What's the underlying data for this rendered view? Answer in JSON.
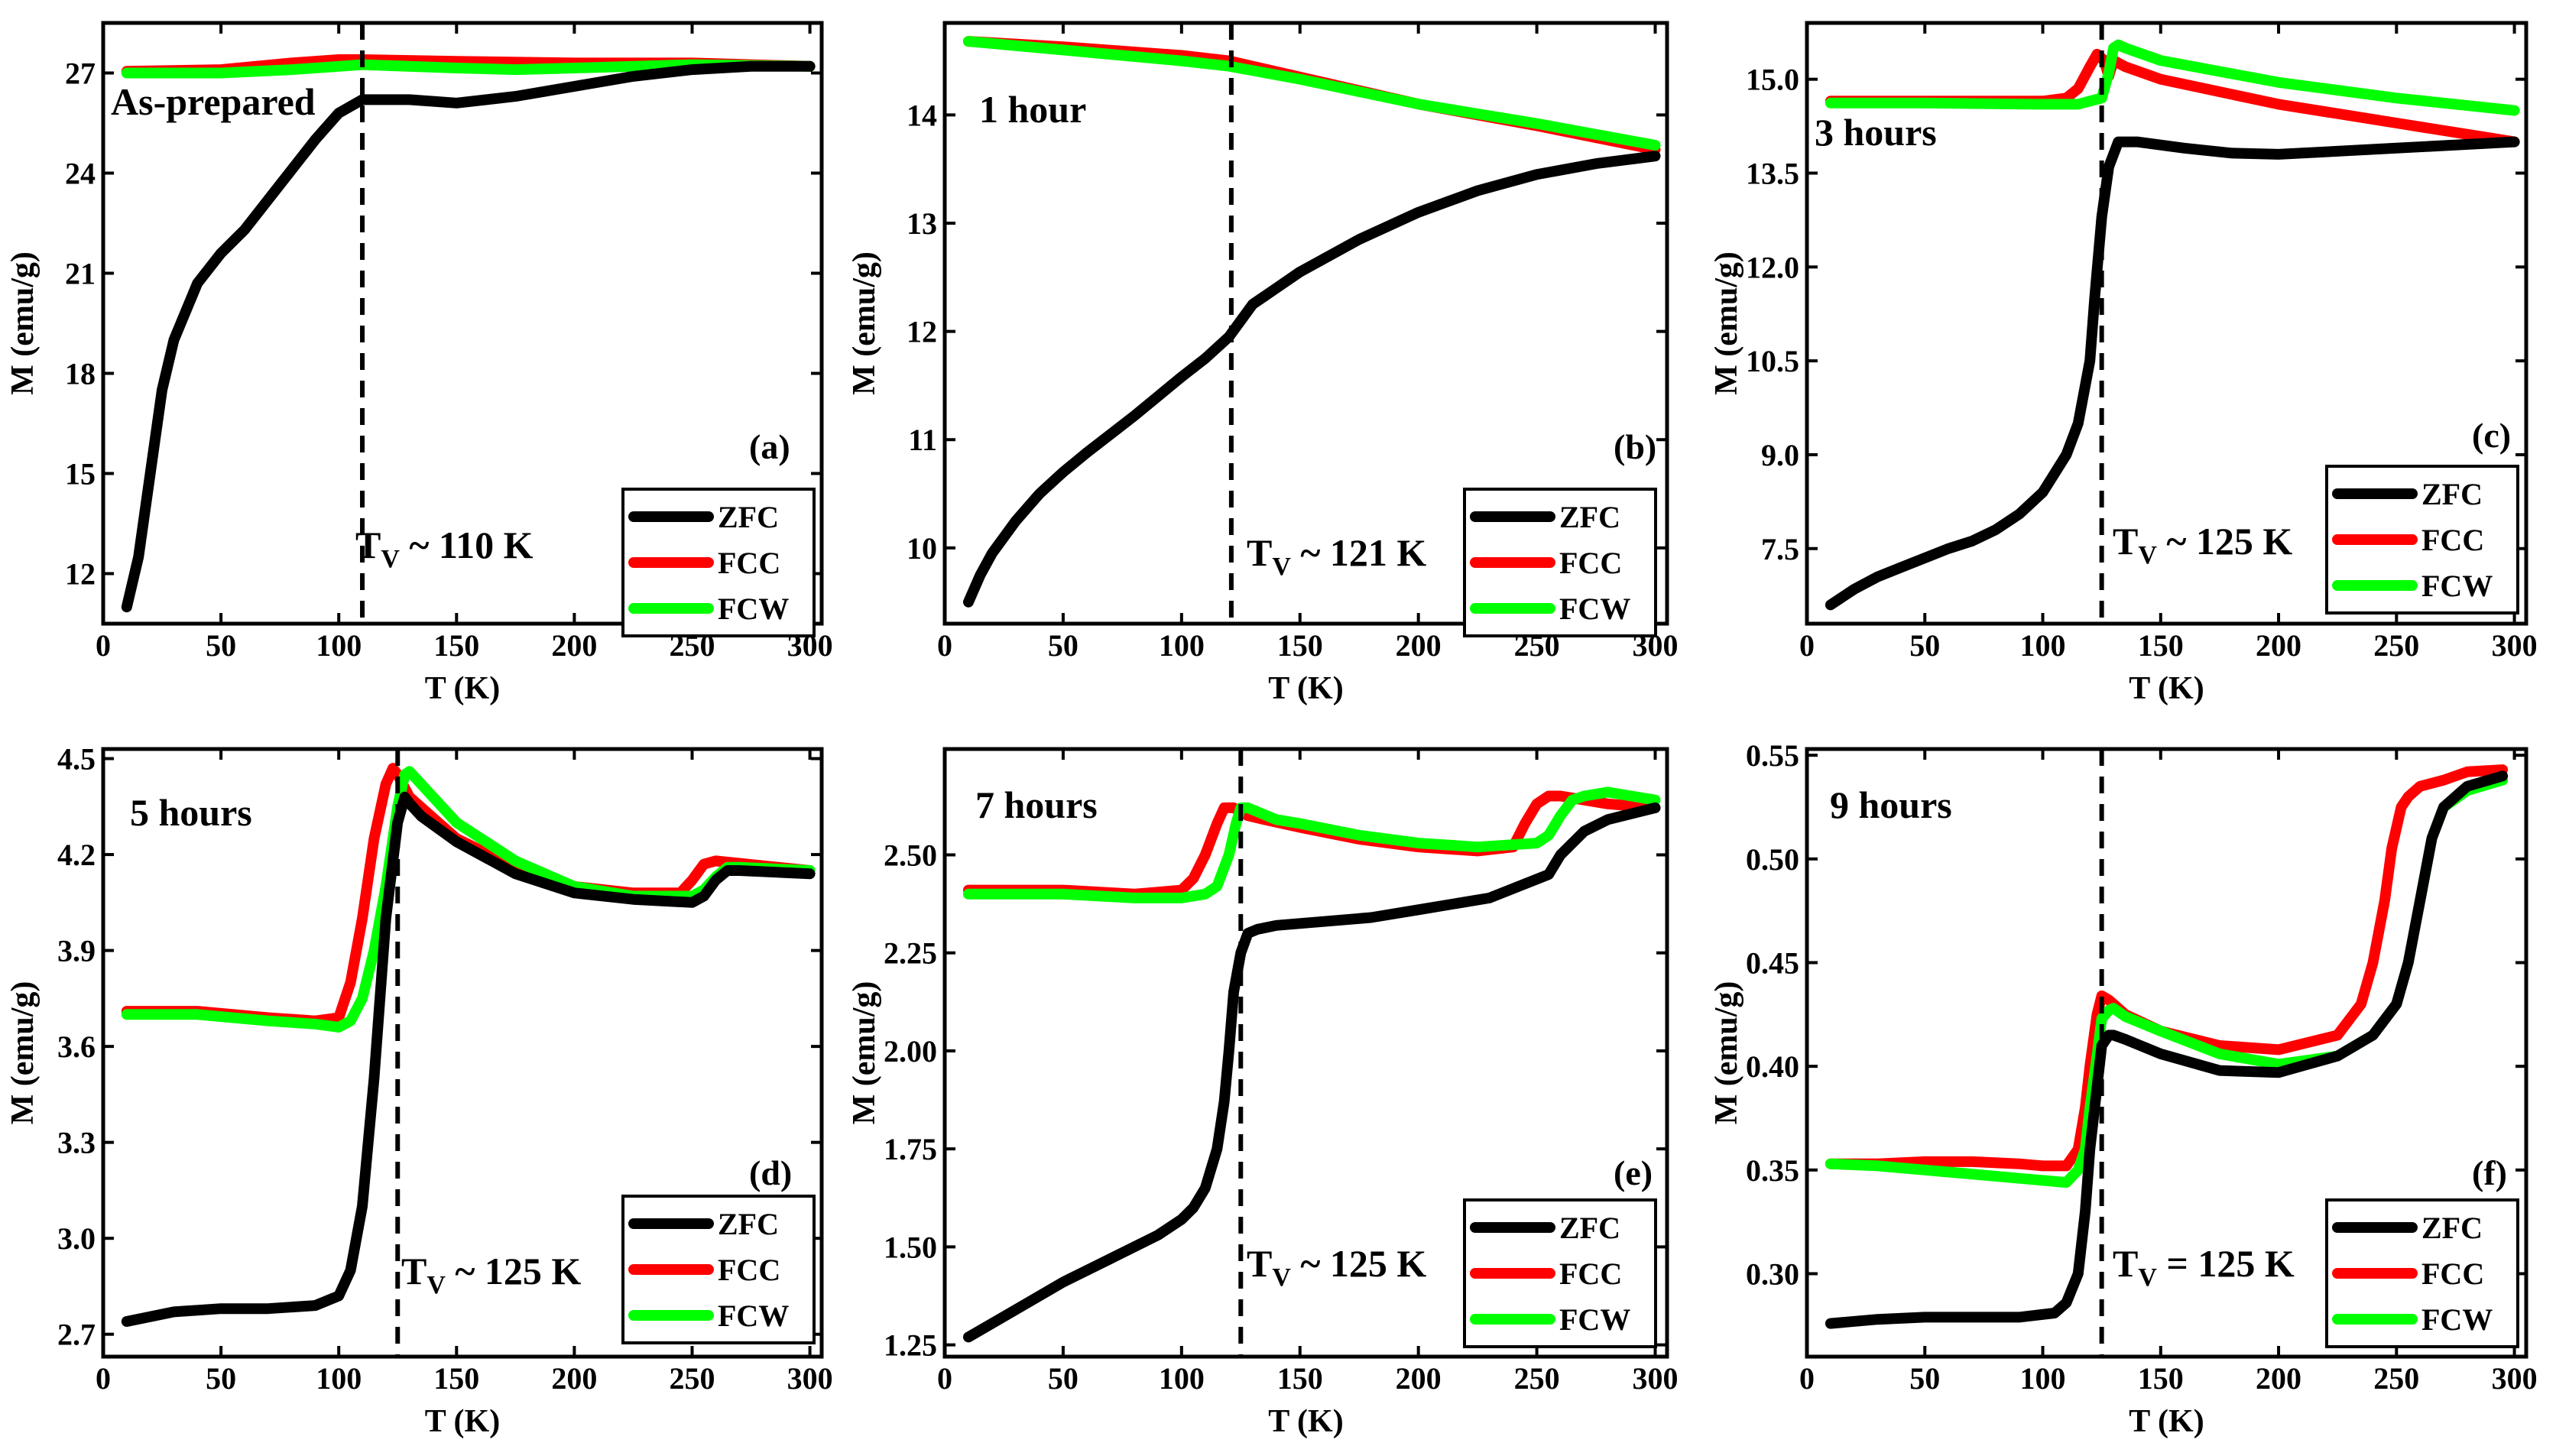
{
  "colors": {
    "ZFC": "#000000",
    "FCC": "#ff0000",
    "FCW": "#00ff00"
  },
  "chart_data": [
    {
      "type": "line",
      "panel_label": "(a)",
      "sample_label": "As-prepared",
      "transition_label": {
        "prefix": "T",
        "sub": "V",
        "suffix": " ~ 110 K"
      },
      "vline_x": 110,
      "xlabel": "T (K)",
      "ylabel": "M (emu/g)",
      "xlim": [
        0,
        305
      ],
      "ylim": [
        10.5,
        28.5
      ],
      "xticks": [
        0,
        50,
        100,
        150,
        200,
        250,
        300
      ],
      "yticks": [
        12,
        15,
        18,
        21,
        24,
        27
      ],
      "ytick_labels": [
        "12",
        "15",
        "18",
        "21",
        "24",
        "27"
      ],
      "legend": [
        "ZFC",
        "FCC",
        "FCW"
      ],
      "series": [
        {
          "name": "ZFC",
          "x": [
            10,
            15,
            20,
            25,
            30,
            40,
            50,
            60,
            70,
            80,
            90,
            100,
            110,
            115,
            130,
            150,
            175,
            200,
            225,
            250,
            275,
            300
          ],
          "y": [
            11.0,
            12.5,
            15.0,
            17.5,
            19.0,
            20.7,
            21.6,
            22.3,
            23.2,
            24.1,
            25.0,
            25.8,
            26.2,
            26.2,
            26.2,
            26.1,
            26.3,
            26.6,
            26.9,
            27.1,
            27.2,
            27.2
          ]
        },
        {
          "name": "FCC",
          "x": [
            10,
            50,
            80,
            100,
            110,
            150,
            200,
            250,
            300
          ],
          "y": [
            27.05,
            27.1,
            27.3,
            27.4,
            27.4,
            27.35,
            27.3,
            27.3,
            27.2
          ]
        },
        {
          "name": "FCW",
          "x": [
            10,
            50,
            80,
            100,
            110,
            150,
            175,
            200,
            250,
            300
          ],
          "y": [
            27.0,
            27.0,
            27.1,
            27.2,
            27.25,
            27.15,
            27.1,
            27.15,
            27.25,
            27.2
          ]
        }
      ]
    },
    {
      "type": "line",
      "panel_label": "(b)",
      "sample_label": "1 hour",
      "transition_label": {
        "prefix": "T",
        "sub": "V",
        "suffix": " ~ 121 K"
      },
      "vline_x": 121,
      "xlabel": "T (K)",
      "ylabel": "M (emu/g)",
      "xlim": [
        0,
        305
      ],
      "ylim": [
        9.3,
        14.85
      ],
      "xticks": [
        0,
        50,
        100,
        150,
        200,
        250,
        300
      ],
      "yticks": [
        10,
        11,
        12,
        13,
        14
      ],
      "ytick_labels": [
        "10",
        "11",
        "12",
        "13",
        "14"
      ],
      "legend": [
        "ZFC",
        "FCC",
        "FCW"
      ],
      "series": [
        {
          "name": "ZFC",
          "x": [
            10,
            15,
            20,
            30,
            40,
            50,
            60,
            70,
            80,
            90,
            100,
            110,
            120,
            130,
            140,
            150,
            175,
            200,
            225,
            250,
            275,
            300
          ],
          "y": [
            9.5,
            9.75,
            9.95,
            10.25,
            10.5,
            10.7,
            10.88,
            11.05,
            11.22,
            11.4,
            11.58,
            11.75,
            11.95,
            12.25,
            12.4,
            12.55,
            12.85,
            13.1,
            13.3,
            13.45,
            13.55,
            13.62
          ]
        },
        {
          "name": "FCC",
          "x": [
            10,
            50,
            100,
            120,
            150,
            200,
            250,
            300
          ],
          "y": [
            14.68,
            14.63,
            14.55,
            14.5,
            14.35,
            14.1,
            13.9,
            13.68
          ]
        },
        {
          "name": "FCW",
          "x": [
            10,
            50,
            100,
            120,
            150,
            200,
            250,
            300
          ],
          "y": [
            14.68,
            14.6,
            14.5,
            14.45,
            14.33,
            14.1,
            13.92,
            13.72
          ]
        }
      ]
    },
    {
      "type": "line",
      "panel_label": "(c)",
      "sample_label": "3 hours",
      "transition_label": {
        "prefix": "T",
        "sub": "V",
        "suffix": " ~ 125 K"
      },
      "vline_x": 125,
      "xlabel": "T (K)",
      "ylabel": "M (emu/g)",
      "xlim": [
        0,
        305
      ],
      "ylim": [
        6.3,
        15.9
      ],
      "xticks": [
        0,
        50,
        100,
        150,
        200,
        250,
        300
      ],
      "yticks": [
        7.5,
        9.0,
        10.5,
        12.0,
        13.5,
        15.0
      ],
      "ytick_labels": [
        "7.5",
        "9.0",
        "10.5",
        "12.0",
        "13.5",
        "15.0"
      ],
      "legend": [
        "ZFC",
        "FCC",
        "FCW"
      ],
      "series": [
        {
          "name": "ZFC",
          "x": [
            10,
            20,
            30,
            40,
            50,
            60,
            70,
            80,
            90,
            100,
            105,
            110,
            115,
            120,
            122,
            125,
            128,
            132,
            140,
            160,
            180,
            200,
            250,
            300
          ],
          "y": [
            6.6,
            6.85,
            7.05,
            7.2,
            7.35,
            7.5,
            7.62,
            7.8,
            8.05,
            8.4,
            8.7,
            9.0,
            9.5,
            10.5,
            11.5,
            12.8,
            13.6,
            14.0,
            14.0,
            13.9,
            13.82,
            13.8,
            13.9,
            14.0
          ]
        },
        {
          "name": "FCC",
          "x": [
            10,
            50,
            100,
            110,
            115,
            120,
            123,
            126,
            128,
            130,
            135,
            150,
            200,
            250,
            300
          ],
          "y": [
            14.65,
            14.65,
            14.65,
            14.7,
            14.85,
            15.2,
            15.4,
            15.3,
            15.05,
            15.3,
            15.2,
            15.0,
            14.6,
            14.3,
            14.0
          ]
        },
        {
          "name": "FCW",
          "x": [
            10,
            50,
            100,
            115,
            120,
            125,
            128,
            130,
            132,
            135,
            150,
            200,
            250,
            300
          ],
          "y": [
            14.62,
            14.62,
            14.6,
            14.6,
            14.65,
            14.7,
            15.1,
            15.5,
            15.55,
            15.5,
            15.3,
            14.95,
            14.7,
            14.5
          ]
        }
      ]
    },
    {
      "type": "line",
      "panel_label": "(d)",
      "sample_label": "5 hours",
      "transition_label": {
        "prefix": "T",
        "sub": "V",
        "suffix": " ~ 125 K"
      },
      "vline_x": 125,
      "xlabel": "T (K)",
      "ylabel": "M (emu/g)",
      "xlim": [
        0,
        305
      ],
      "ylim": [
        2.63,
        4.53
      ],
      "xticks": [
        0,
        50,
        100,
        150,
        200,
        250,
        300
      ],
      "yticks": [
        2.7,
        3.0,
        3.3,
        3.6,
        3.9,
        4.2,
        4.5
      ],
      "ytick_labels": [
        "2.7",
        "3.0",
        "3.3",
        "3.6",
        "3.9",
        "4.2",
        "4.5"
      ],
      "legend": [
        "ZFC",
        "FCC",
        "FCW"
      ],
      "series": [
        {
          "name": "ZFC",
          "x": [
            10,
            30,
            50,
            70,
            90,
            100,
            105,
            110,
            115,
            120,
            125,
            128,
            130,
            135,
            150,
            175,
            200,
            225,
            250,
            255,
            260,
            265,
            270,
            300
          ],
          "y": [
            2.74,
            2.77,
            2.78,
            2.78,
            2.79,
            2.82,
            2.9,
            3.1,
            3.5,
            4.0,
            4.3,
            4.38,
            4.36,
            4.32,
            4.24,
            4.14,
            4.08,
            4.06,
            4.05,
            4.07,
            4.12,
            4.15,
            4.15,
            4.14
          ]
        },
        {
          "name": "FCC",
          "x": [
            10,
            40,
            70,
            90,
            100,
            105,
            110,
            115,
            120,
            123,
            125,
            130,
            150,
            175,
            200,
            225,
            245,
            250,
            255,
            260,
            300
          ],
          "y": [
            3.71,
            3.71,
            3.69,
            3.68,
            3.69,
            3.8,
            4.0,
            4.25,
            4.42,
            4.47,
            4.45,
            4.38,
            4.25,
            4.16,
            4.1,
            4.08,
            4.08,
            4.12,
            4.17,
            4.18,
            4.15
          ]
        },
        {
          "name": "FCW",
          "x": [
            10,
            40,
            70,
            90,
            100,
            105,
            110,
            115,
            120,
            125,
            128,
            130,
            135,
            150,
            175,
            200,
            225,
            250,
            255,
            260,
            265,
            270,
            300
          ],
          "y": [
            3.7,
            3.7,
            3.68,
            3.67,
            3.66,
            3.68,
            3.75,
            3.9,
            4.1,
            4.35,
            4.45,
            4.46,
            4.42,
            4.3,
            4.18,
            4.1,
            4.07,
            4.07,
            4.09,
            4.13,
            4.16,
            4.16,
            4.15
          ]
        }
      ]
    },
    {
      "type": "line",
      "panel_label": "(e)",
      "sample_label": "7 hours",
      "transition_label": {
        "prefix": "T",
        "sub": "V",
        "suffix": " ~ 125 K"
      },
      "vline_x": 125,
      "xlabel": "T (K)",
      "ylabel": "M (emu/g)",
      "xlim": [
        0,
        305
      ],
      "ylim": [
        1.22,
        2.77
      ],
      "xticks": [
        0,
        50,
        100,
        150,
        200,
        250,
        300
      ],
      "yticks": [
        1.25,
        1.5,
        1.75,
        2.0,
        2.25,
        2.5
      ],
      "ytick_labels": [
        "1.25",
        "1.50",
        "1.75",
        "2.00",
        "2.25",
        "2.50"
      ],
      "legend": [
        "ZFC",
        "FCC",
        "FCW"
      ],
      "series": [
        {
          "name": "ZFC",
          "x": [
            10,
            30,
            50,
            70,
            90,
            100,
            105,
            110,
            115,
            118,
            120,
            122,
            125,
            128,
            132,
            140,
            160,
            180,
            200,
            230,
            255,
            260,
            270,
            280,
            300
          ],
          "y": [
            1.27,
            1.34,
            1.41,
            1.47,
            1.53,
            1.57,
            1.6,
            1.65,
            1.75,
            1.87,
            2.0,
            2.15,
            2.25,
            2.3,
            2.31,
            2.32,
            2.33,
            2.34,
            2.36,
            2.39,
            2.45,
            2.5,
            2.56,
            2.59,
            2.62
          ]
        },
        {
          "name": "FCC",
          "x": [
            10,
            50,
            80,
            100,
            105,
            110,
            115,
            118,
            122,
            125,
            128,
            135,
            150,
            175,
            200,
            225,
            240,
            245,
            250,
            255,
            260,
            270,
            280,
            300
          ],
          "y": [
            2.41,
            2.41,
            2.4,
            2.41,
            2.44,
            2.5,
            2.58,
            2.62,
            2.62,
            2.61,
            2.6,
            2.59,
            2.57,
            2.54,
            2.52,
            2.51,
            2.52,
            2.58,
            2.63,
            2.65,
            2.65,
            2.64,
            2.63,
            2.62
          ]
        },
        {
          "name": "FCW",
          "x": [
            10,
            50,
            80,
            100,
            110,
            115,
            120,
            123,
            125,
            128,
            132,
            140,
            150,
            175,
            200,
            225,
            250,
            255,
            260,
            265,
            270,
            280,
            300
          ],
          "y": [
            2.4,
            2.4,
            2.39,
            2.39,
            2.4,
            2.42,
            2.5,
            2.58,
            2.62,
            2.62,
            2.61,
            2.59,
            2.58,
            2.55,
            2.53,
            2.52,
            2.53,
            2.55,
            2.6,
            2.64,
            2.65,
            2.66,
            2.64
          ]
        }
      ]
    },
    {
      "type": "line",
      "panel_label": "(f)",
      "sample_label": "9 hours",
      "transition_label": {
        "prefix": "T",
        "sub": "V",
        "suffix": " = 125 K"
      },
      "vline_x": 125,
      "xlabel": "T (K)",
      "ylabel": "M (emu/g)",
      "xlim": [
        0,
        305
      ],
      "ylim": [
        0.26,
        0.553
      ],
      "xticks": [
        0,
        50,
        100,
        150,
        200,
        250,
        300
      ],
      "yticks": [
        0.3,
        0.35,
        0.4,
        0.45,
        0.5,
        0.55
      ],
      "ytick_labels": [
        "0.30",
        "0.35",
        "0.40",
        "0.45",
        "0.50",
        "0.55"
      ],
      "legend": [
        "ZFC",
        "FCC",
        "FCW"
      ],
      "series": [
        {
          "name": "ZFC",
          "x": [
            10,
            30,
            50,
            70,
            90,
            105,
            110,
            115,
            118,
            120,
            123,
            125,
            128,
            130,
            135,
            150,
            175,
            200,
            225,
            240,
            250,
            255,
            260,
            265,
            270,
            280,
            295
          ],
          "y": [
            0.276,
            0.278,
            0.279,
            0.279,
            0.279,
            0.281,
            0.286,
            0.3,
            0.33,
            0.36,
            0.39,
            0.41,
            0.415,
            0.415,
            0.413,
            0.406,
            0.398,
            0.397,
            0.405,
            0.415,
            0.43,
            0.45,
            0.48,
            0.51,
            0.525,
            0.535,
            0.54
          ]
        },
        {
          "name": "FCC",
          "x": [
            10,
            30,
            50,
            70,
            90,
            100,
            110,
            115,
            118,
            120,
            123,
            125,
            128,
            130,
            135,
            150,
            175,
            200,
            225,
            235,
            240,
            245,
            248,
            252,
            255,
            260,
            270,
            280,
            295
          ],
          "y": [
            0.353,
            0.353,
            0.354,
            0.354,
            0.353,
            0.352,
            0.352,
            0.36,
            0.38,
            0.4,
            0.425,
            0.434,
            0.432,
            0.43,
            0.425,
            0.417,
            0.41,
            0.408,
            0.415,
            0.43,
            0.45,
            0.48,
            0.505,
            0.525,
            0.53,
            0.535,
            0.538,
            0.542,
            0.543
          ]
        },
        {
          "name": "FCW",
          "x": [
            10,
            30,
            50,
            70,
            90,
            100,
            110,
            115,
            118,
            120,
            123,
            125,
            128,
            130,
            135,
            150,
            175,
            200,
            225,
            240,
            250,
            255,
            260,
            265,
            270,
            280,
            295
          ],
          "y": [
            0.353,
            0.352,
            0.35,
            0.348,
            0.346,
            0.345,
            0.344,
            0.35,
            0.36,
            0.38,
            0.405,
            0.423,
            0.427,
            0.428,
            0.424,
            0.417,
            0.406,
            0.401,
            0.405,
            0.415,
            0.43,
            0.45,
            0.48,
            0.51,
            0.525,
            0.533,
            0.538
          ]
        }
      ]
    }
  ]
}
